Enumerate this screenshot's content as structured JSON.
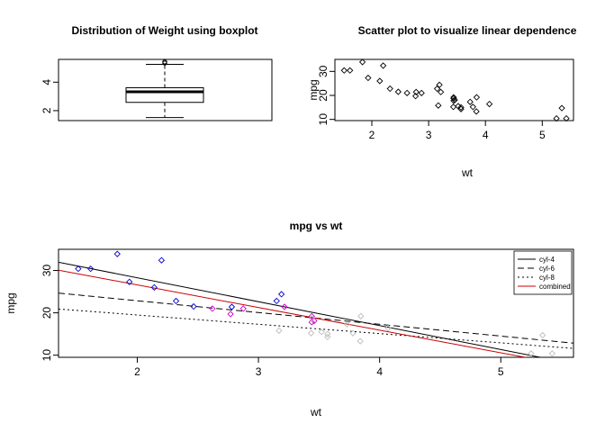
{
  "chart_data": [
    {
      "type": "boxplot",
      "title": "Distribution of Weight using boxplot",
      "xlabel": "",
      "ylabel": "",
      "ylim": [
        1.3,
        5.6
      ],
      "yticks": [
        2,
        4
      ],
      "box": {
        "min": 1.513,
        "q1": 2.581,
        "median": 3.325,
        "q3": 3.61,
        "max": 5.25
      },
      "outliers": [
        5.345,
        5.424
      ]
    },
    {
      "type": "scatter",
      "title": "Scatter plot to visualize linear dependence",
      "xlabel": "wt",
      "ylabel": "mpg",
      "xlim": [
        1.35,
        5.55
      ],
      "ylim": [
        9.5,
        35
      ],
      "xticks": [
        2,
        3,
        4,
        5
      ],
      "yticks": [
        10,
        20,
        30
      ],
      "points": [
        [
          2.62,
          21.0
        ],
        [
          2.875,
          21.0
        ],
        [
          2.32,
          22.8
        ],
        [
          3.215,
          21.4
        ],
        [
          3.44,
          18.7
        ],
        [
          3.46,
          18.1
        ],
        [
          3.57,
          14.3
        ],
        [
          3.19,
          24.4
        ],
        [
          3.15,
          22.8
        ],
        [
          3.44,
          19.2
        ],
        [
          3.44,
          17.8
        ],
        [
          4.07,
          16.4
        ],
        [
          3.73,
          17.3
        ],
        [
          3.78,
          15.2
        ],
        [
          5.25,
          10.4
        ],
        [
          5.424,
          10.4
        ],
        [
          5.345,
          14.7
        ],
        [
          2.2,
          32.4
        ],
        [
          1.615,
          30.4
        ],
        [
          1.835,
          33.9
        ],
        [
          2.465,
          21.5
        ],
        [
          3.52,
          15.5
        ],
        [
          3.435,
          15.2
        ],
        [
          3.84,
          13.3
        ],
        [
          3.845,
          19.2
        ],
        [
          1.935,
          27.3
        ],
        [
          2.14,
          26.0
        ],
        [
          1.513,
          30.4
        ],
        [
          3.17,
          15.8
        ],
        [
          2.77,
          19.7
        ],
        [
          3.57,
          15.0
        ],
        [
          2.78,
          21.4
        ]
      ]
    },
    {
      "type": "scatter",
      "title": "mpg vs wt",
      "xlabel": "wt",
      "ylabel": "mpg",
      "xlim": [
        1.35,
        5.6
      ],
      "ylim": [
        9.5,
        35
      ],
      "xticks": [
        2,
        3,
        4,
        5
      ],
      "yticks": [
        10,
        20,
        30
      ],
      "series": [
        {
          "name": "cyl-4",
          "color": "#0000cc",
          "line_style": "solid",
          "line_color": "#000000",
          "points": [
            [
              2.32,
              22.8
            ],
            [
              3.19,
              24.4
            ],
            [
              3.15,
              22.8
            ],
            [
              2.2,
              32.4
            ],
            [
              1.615,
              30.4
            ],
            [
              1.835,
              33.9
            ],
            [
              2.465,
              21.5
            ],
            [
              1.935,
              27.3
            ],
            [
              2.14,
              26.0
            ],
            [
              1.513,
              30.4
            ],
            [
              2.78,
              21.4
            ]
          ],
          "fit": {
            "intercept": 39.571,
            "slope": -5.647
          }
        },
        {
          "name": "cyl-6",
          "color": "#cc00cc",
          "line_style": "dashed",
          "line_color": "#000000",
          "points": [
            [
              2.62,
              21.0
            ],
            [
              2.875,
              21.0
            ],
            [
              3.215,
              21.4
            ],
            [
              3.46,
              18.1
            ],
            [
              3.44,
              19.2
            ],
            [
              3.44,
              17.8
            ],
            [
              2.77,
              19.7
            ]
          ],
          "fit": {
            "intercept": 28.409,
            "slope": -2.78
          }
        },
        {
          "name": "cyl-8",
          "color": "#bbbbbb",
          "line_style": "dotted",
          "line_color": "#000000",
          "points": [
            [
              3.44,
              18.7
            ],
            [
              3.57,
              14.3
            ],
            [
              4.07,
              16.4
            ],
            [
              3.73,
              17.3
            ],
            [
              3.78,
              15.2
            ],
            [
              5.25,
              10.4
            ],
            [
              5.424,
              10.4
            ],
            [
              5.345,
              14.7
            ],
            [
              3.52,
              15.5
            ],
            [
              3.435,
              15.2
            ],
            [
              3.84,
              13.3
            ],
            [
              3.845,
              19.2
            ],
            [
              3.17,
              15.8
            ],
            [
              3.57,
              15.0
            ]
          ],
          "fit": {
            "intercept": 23.868,
            "slope": -2.192
          }
        },
        {
          "name": "combined",
          "color": "#cc0000",
          "line_style": "solid",
          "line_color": "#cc0000",
          "points": [],
          "fit": {
            "intercept": 37.285,
            "slope": -5.344
          }
        }
      ],
      "legend_position": "top-right"
    }
  ]
}
